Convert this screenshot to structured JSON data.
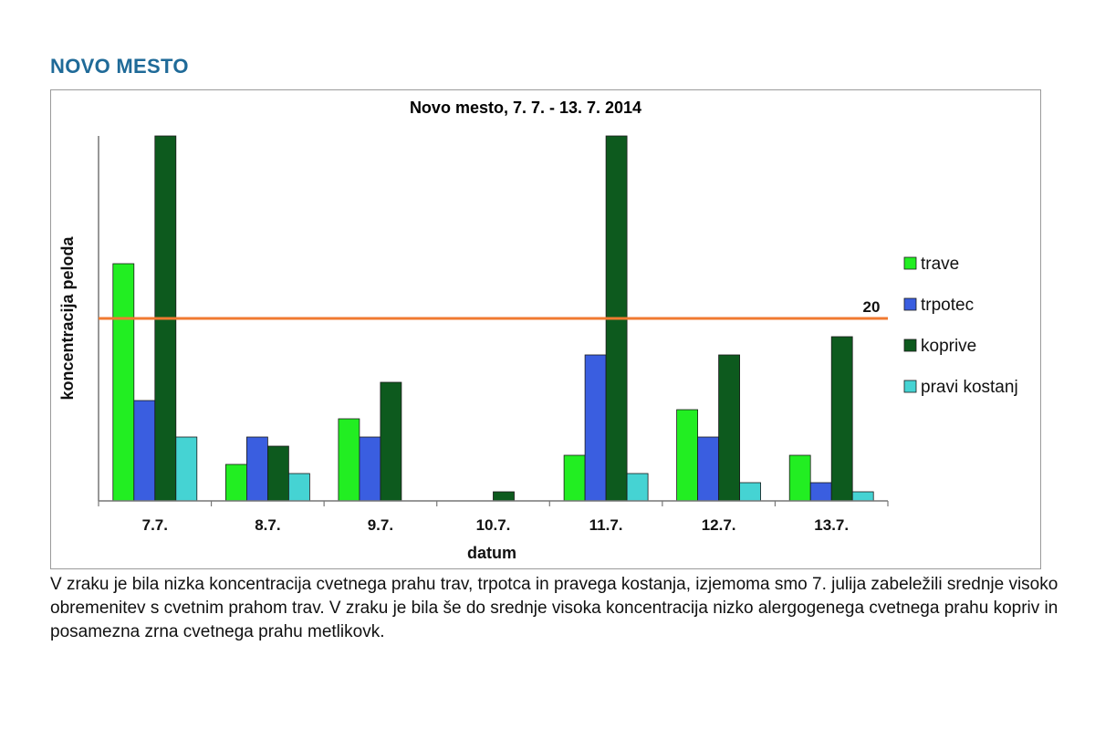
{
  "page": {
    "heading": "NOVO MESTO",
    "description": "V zraku je bila nizka koncentracija cvetnega prahu trav, trpotca in pravega kostanja, izjemoma smo 7. julija zabeležili srednje visoko obremenitev s cvetnim prahom trav. V zraku je bila še do srednje visoka koncentracija nizko alergogenega cvetnega prahu kopriv in posamezna zrna cvetnega prahu metlikovk."
  },
  "chart_data": {
    "type": "bar",
    "title": "Novo mesto, 7. 7. -  13. 7. 2014",
    "xlabel": "datum",
    "ylabel": "koncentracija peloda",
    "categories": [
      "7.7.",
      "8.7.",
      "9.7.",
      "10.7.",
      "11.7.",
      "12.7.",
      "13.7."
    ],
    "ylim": [
      0,
      40
    ],
    "y_tick_labels_shown": false,
    "grid": false,
    "legend_position": "right",
    "series": [
      {
        "name": "trave",
        "color": "#22ee22",
        "values": [
          26,
          4,
          9,
          0,
          5,
          10,
          5
        ]
      },
      {
        "name": "trpotec",
        "color": "#3a5ee0",
        "values": [
          11,
          7,
          7,
          0,
          16,
          7,
          2
        ]
      },
      {
        "name": "koprive",
        "color": "#0d5a1e",
        "values": [
          40,
          6,
          13,
          1,
          40,
          16,
          18
        ]
      },
      {
        "name": "pravi kostanj",
        "color": "#45d3d3",
        "values": [
          7,
          3,
          0,
          0,
          3,
          2,
          1
        ]
      }
    ],
    "reference_line": {
      "value": 20,
      "label": "20",
      "color": "#f07a30"
    }
  }
}
